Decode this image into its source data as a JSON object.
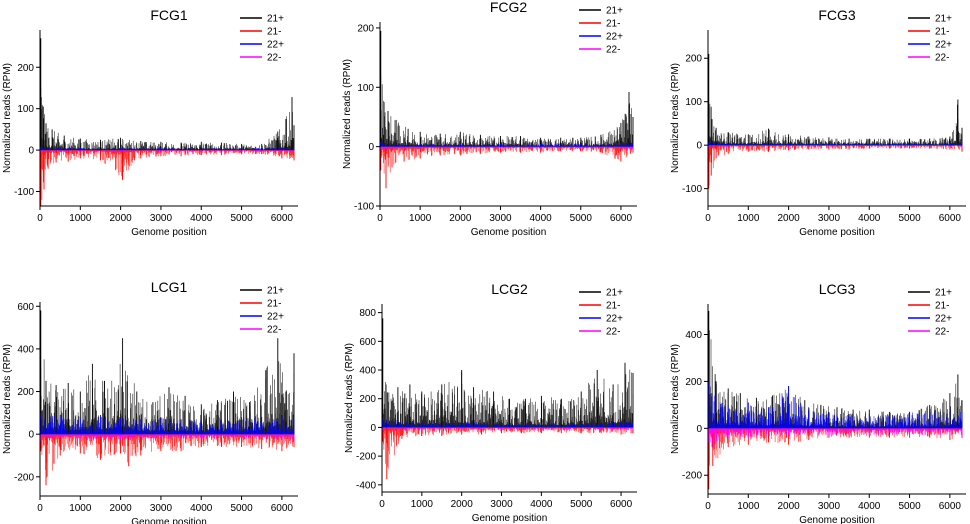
{
  "figure": {
    "xlabel": "Genome position",
    "ylabel": "Normalized reads (RPM)",
    "legend_position": "top-right",
    "series": [
      {
        "name": "21+",
        "color": "#000000"
      },
      {
        "name": "21-",
        "color": "#ff0000"
      },
      {
        "name": "22+",
        "color": "#0000ff"
      },
      {
        "name": "22-",
        "color": "#ff00ff"
      }
    ]
  },
  "chart_data": [
    {
      "type": "line",
      "title": "FCG1",
      "xlabel": "Genome position",
      "ylabel": "Normalized reads (RPM)",
      "xlim": [
        0,
        6400
      ],
      "ylim": [
        -135,
        290
      ],
      "xticks": [
        0,
        1000,
        2000,
        3000,
        4000,
        5000,
        6000
      ],
      "yticks": [
        -100,
        0,
        100,
        200
      ],
      "series": [
        {
          "name": "21+",
          "x": [
            20,
            80,
            150,
            300,
            600,
            1000,
            1500,
            2000,
            2500,
            3000,
            3500,
            4000,
            4500,
            5000,
            5500,
            5900,
            6100,
            6250,
            6300
          ],
          "values": [
            270,
            105,
            65,
            50,
            35,
            28,
            25,
            30,
            22,
            20,
            18,
            20,
            18,
            15,
            15,
            45,
            75,
            128,
            60
          ]
        },
        {
          "name": "21-",
          "x": [
            20,
            100,
            200,
            400,
            700,
            1000,
            1500,
            2050,
            2500,
            3000,
            3500,
            4000,
            4500,
            5000,
            5500,
            6000,
            6300
          ],
          "values": [
            -135,
            -95,
            -45,
            -30,
            -28,
            -20,
            -25,
            -72,
            -20,
            -15,
            -15,
            -12,
            -12,
            -10,
            -10,
            -20,
            -25
          ]
        },
        {
          "name": "22+",
          "x": [
            20,
            1000,
            2000,
            3000,
            4000,
            5000,
            6000,
            6300
          ],
          "values": [
            8,
            5,
            5,
            5,
            5,
            5,
            6,
            8
          ]
        },
        {
          "name": "22-",
          "x": [
            20,
            1000,
            2000,
            3000,
            4000,
            5000,
            6000,
            6300
          ],
          "values": [
            -5,
            -3,
            -3,
            -3,
            -3,
            -3,
            -3,
            -5
          ]
        }
      ]
    },
    {
      "type": "line",
      "title": "FCG2",
      "xlabel": "Genome position",
      "ylabel": "Normalized reads (RPM)",
      "xlim": [
        0,
        6400
      ],
      "ylim": [
        -100,
        210
      ],
      "xticks": [
        0,
        1000,
        2000,
        3000,
        4000,
        5000,
        6000
      ],
      "yticks": [
        -100,
        0,
        100,
        200
      ],
      "series": [
        {
          "name": "21+",
          "x": [
            20,
            100,
            200,
            400,
            700,
            1000,
            1500,
            2000,
            2500,
            3000,
            3500,
            4000,
            4500,
            5000,
            5500,
            6000,
            6200,
            6300
          ],
          "values": [
            195,
            75,
            60,
            45,
            30,
            25,
            22,
            25,
            20,
            18,
            18,
            15,
            15,
            15,
            20,
            40,
            92,
            50
          ]
        },
        {
          "name": "21-",
          "x": [
            20,
            150,
            300,
            600,
            1000,
            1500,
            2000,
            2500,
            3000,
            3500,
            4000,
            4500,
            5000,
            5500,
            6000,
            6300
          ],
          "values": [
            -40,
            -70,
            -35,
            -25,
            -20,
            -15,
            -15,
            -12,
            -10,
            -10,
            -10,
            -8,
            -8,
            -10,
            -25,
            -10
          ]
        },
        {
          "name": "22+",
          "x": [
            20,
            1000,
            2000,
            3000,
            4000,
            5000,
            6000,
            6300
          ],
          "values": [
            8,
            5,
            5,
            5,
            5,
            5,
            6,
            8
          ]
        },
        {
          "name": "22-",
          "x": [
            20,
            1000,
            2000,
            3000,
            4000,
            5000,
            6000,
            6300
          ],
          "values": [
            -5,
            -3,
            -3,
            -3,
            -3,
            -3,
            -3,
            -5
          ]
        }
      ]
    },
    {
      "type": "line",
      "title": "FCG3",
      "xlabel": "Genome position",
      "ylabel": "Normalized reads (RPM)",
      "xlim": [
        0,
        6400
      ],
      "ylim": [
        -140,
        265
      ],
      "xticks": [
        0,
        1000,
        2000,
        3000,
        4000,
        5000,
        6000
      ],
      "yticks": [
        -100,
        0,
        100,
        200
      ],
      "series": [
        {
          "name": "21+",
          "x": [
            20,
            100,
            200,
            500,
            1000,
            1500,
            2000,
            2500,
            3000,
            3500,
            4000,
            4500,
            5000,
            5500,
            6000,
            6200,
            6300
          ],
          "values": [
            210,
            60,
            40,
            30,
            25,
            38,
            25,
            20,
            18,
            15,
            15,
            15,
            15,
            15,
            20,
            105,
            40
          ]
        },
        {
          "name": "21-",
          "x": [
            20,
            80,
            200,
            500,
            1000,
            1500,
            2000,
            2500,
            3000,
            3500,
            4000,
            4500,
            5000,
            5500,
            6000,
            6300
          ],
          "values": [
            -100,
            -70,
            -30,
            -20,
            -15,
            -15,
            -12,
            -10,
            -10,
            -10,
            -8,
            -8,
            -8,
            -8,
            -10,
            -15
          ]
        },
        {
          "name": "22+",
          "x": [
            20,
            1000,
            2000,
            3000,
            4000,
            5000,
            6000,
            6300
          ],
          "values": [
            8,
            5,
            5,
            5,
            5,
            5,
            6,
            8
          ]
        },
        {
          "name": "22-",
          "x": [
            20,
            1000,
            2000,
            3000,
            4000,
            5000,
            6000,
            6300
          ],
          "values": [
            -5,
            -3,
            -3,
            -3,
            -3,
            -3,
            -3,
            -5
          ]
        }
      ]
    },
    {
      "type": "line",
      "title": "LCG1",
      "xlabel": "Genome position",
      "ylabel": "Normalized reads (RPM)",
      "xlim": [
        0,
        6400
      ],
      "ylim": [
        -290,
        620
      ],
      "xticks": [
        0,
        1000,
        2000,
        3000,
        4000,
        5000,
        6000
      ],
      "yticks": [
        -200,
        0,
        200,
        400,
        600
      ],
      "series": [
        {
          "name": "21+",
          "x": [
            20,
            150,
            400,
            700,
            1000,
            1300,
            1600,
            2050,
            2400,
            2800,
            3200,
            3600,
            4000,
            4400,
            4800,
            5200,
            5600,
            5900,
            6100,
            6300
          ],
          "values": [
            580,
            250,
            230,
            240,
            200,
            330,
            250,
            450,
            200,
            150,
            220,
            180,
            140,
            160,
            200,
            150,
            300,
            450,
            200,
            380
          ]
        },
        {
          "name": "21-",
          "x": [
            20,
            150,
            500,
            1000,
            1500,
            2000,
            2200,
            2500,
            3000,
            3500,
            4000,
            4500,
            5000,
            5500,
            6000,
            6300
          ],
          "values": [
            -80,
            -240,
            -100,
            -90,
            -120,
            -90,
            -150,
            -100,
            -80,
            -80,
            -60,
            -60,
            -60,
            -70,
            -80,
            -60
          ]
        },
        {
          "name": "22+",
          "x": [
            20,
            500,
            1000,
            1500,
            2000,
            2500,
            3000,
            3500,
            4000,
            4500,
            5000,
            5500,
            6000,
            6300
          ],
          "values": [
            100,
            90,
            80,
            90,
            80,
            70,
            80,
            70,
            70,
            70,
            80,
            80,
            90,
            80
          ]
        },
        {
          "name": "22-",
          "x": [
            20,
            1000,
            2000,
            3000,
            4000,
            5000,
            6000,
            6300
          ],
          "values": [
            -30,
            -25,
            -25,
            -20,
            -20,
            -20,
            -25,
            -30
          ]
        }
      ]
    },
    {
      "type": "line",
      "title": "LCG2",
      "xlabel": "Genome position",
      "ylabel": "Normalized reads (RPM)",
      "xlim": [
        0,
        6400
      ],
      "ylim": [
        -450,
        860
      ],
      "xticks": [
        0,
        1000,
        2000,
        3000,
        4000,
        5000,
        6000
      ],
      "yticks": [
        -400,
        -200,
        0,
        200,
        400,
        600,
        800
      ],
      "series": [
        {
          "name": "21+",
          "x": [
            20,
            100,
            400,
            700,
            1000,
            1500,
            2000,
            2300,
            2800,
            3200,
            3600,
            4000,
            4500,
            5000,
            5400,
            5800,
            6100,
            6300
          ],
          "values": [
            760,
            300,
            280,
            300,
            250,
            300,
            400,
            280,
            250,
            200,
            200,
            220,
            200,
            250,
            400,
            300,
            450,
            380
          ]
        },
        {
          "name": "21-",
          "x": [
            20,
            120,
            500,
            1000,
            1500,
            2000,
            2500,
            3000,
            3500,
            4000,
            4500,
            5000,
            5500,
            6000,
            6300
          ],
          "values": [
            -100,
            -360,
            -80,
            -60,
            -60,
            -50,
            -50,
            -40,
            -40,
            -40,
            -40,
            -40,
            -40,
            -50,
            -40
          ]
        },
        {
          "name": "22+",
          "x": [
            20,
            1000,
            2000,
            3000,
            4000,
            5000,
            6000,
            6300
          ],
          "values": [
            60,
            40,
            40,
            35,
            35,
            35,
            40,
            40
          ]
        },
        {
          "name": "22-",
          "x": [
            20,
            1000,
            2000,
            3000,
            4000,
            5000,
            6000,
            6300
          ],
          "values": [
            -20,
            -15,
            -15,
            -15,
            -15,
            -15,
            -15,
            -20
          ]
        }
      ]
    },
    {
      "type": "line",
      "title": "LCG3",
      "xlabel": "Genome position",
      "ylabel": "Normalized reads (RPM)",
      "xlim": [
        0,
        6400
      ],
      "ylim": [
        -280,
        530
      ],
      "xticks": [
        0,
        1000,
        2000,
        3000,
        4000,
        5000,
        6000
      ],
      "yticks": [
        -200,
        0,
        200,
        400
      ],
      "series": [
        {
          "name": "21+",
          "x": [
            20,
            200,
            500,
            800,
            1200,
            1600,
            2000,
            2400,
            2800,
            3200,
            3600,
            4000,
            4500,
            5000,
            5500,
            6000,
            6200,
            6300
          ],
          "values": [
            500,
            200,
            170,
            150,
            130,
            140,
            180,
            120,
            100,
            90,
            80,
            80,
            70,
            70,
            100,
            150,
            230,
            120
          ]
        },
        {
          "name": "21-",
          "x": [
            20,
            120,
            500,
            1000,
            1500,
            2000,
            2500,
            3000,
            3500,
            4000,
            4500,
            5000,
            5500,
            6000,
            6300
          ],
          "values": [
            -260,
            -160,
            -80,
            -70,
            -60,
            -70,
            -50,
            -40,
            -40,
            -40,
            -40,
            -40,
            -40,
            -50,
            -40
          ]
        },
        {
          "name": "22+",
          "x": [
            20,
            100,
            500,
            1000,
            1500,
            2000,
            2500,
            3000,
            3500,
            4000,
            4500,
            5000,
            5500,
            6000,
            6300
          ],
          "values": [
            200,
            150,
            100,
            110,
            90,
            180,
            80,
            70,
            60,
            60,
            60,
            70,
            70,
            80,
            70
          ]
        },
        {
          "name": "22-",
          "x": [
            20,
            100,
            500,
            1000,
            2000,
            3000,
            4000,
            5000,
            6000,
            6300
          ],
          "values": [
            -60,
            -80,
            -40,
            -40,
            -30,
            -30,
            -30,
            -30,
            -30,
            -40
          ]
        }
      ]
    }
  ]
}
